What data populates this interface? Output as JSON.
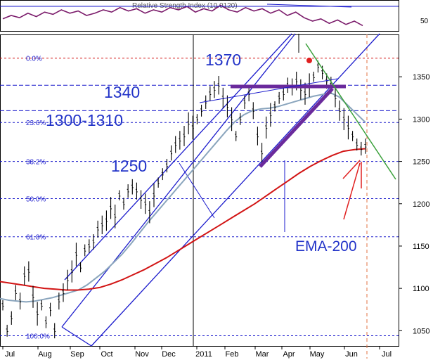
{
  "chart_data": [
    {
      "type": "line",
      "title": "Relative Strength Index (10.0120)",
      "y_ticks": [
        "50"
      ],
      "series": [
        {
          "values": [
            52,
            55,
            53,
            57,
            54,
            58,
            56,
            60,
            57,
            59,
            55,
            57,
            60,
            58,
            62,
            59,
            61,
            57,
            60,
            58,
            62,
            60,
            63,
            58,
            61,
            59,
            64,
            60,
            58,
            62,
            59,
            61,
            57,
            60,
            55,
            58,
            53,
            50,
            52,
            48,
            51,
            47,
            50,
            46
          ]
        }
      ]
    },
    {
      "type": "line",
      "y_ticks": [
        1050,
        1100,
        1150,
        1200,
        1250,
        1300,
        1350
      ],
      "ylim": [
        1032,
        1400
      ],
      "x_ticks": [
        "Jul",
        "Aug",
        "Sep",
        "Oct",
        "Nov",
        "Dec",
        "2011",
        "Feb",
        "Mar",
        "Apr",
        "May",
        "Jun",
        "Jul"
      ],
      "fib_levels": [
        "0.0%",
        "23.6%",
        "38.2%",
        "50.0%",
        "61.8%",
        "100.0%"
      ],
      "fib_prices": [
        1372,
        1296,
        1250,
        1206,
        1161,
        1044
      ],
      "level_labels": [
        "1370",
        "1340",
        "1300-1310",
        "1250"
      ],
      "ema_label": "EMA-200",
      "colors": {
        "price": "#000000",
        "ema": "#d21414",
        "sma": "#8aa5bd",
        "channel": "#1a1acc",
        "trend": "#3aa03a",
        "support": "#6a2a9c",
        "rsi": "#7a1a6a",
        "annotation": "#2233c8",
        "arrow": "#e02020"
      },
      "series": [
        {
          "kind": "price",
          "values": [
            1080,
            1050,
            1065,
            1095,
            1085,
            1115,
            1120,
            1090,
            1070,
            1080,
            1060,
            1075,
            1050,
            1085,
            1095,
            1110,
            1120,
            1140,
            1125,
            1145,
            1150,
            1155,
            1170,
            1175,
            1180,
            1195,
            1185,
            1210,
            1200,
            1215,
            1220,
            1215,
            1205,
            1200,
            1190,
            1210,
            1225,
            1235,
            1245,
            1260,
            1270,
            1275,
            1280,
            1295,
            1290,
            1300,
            1310,
            1320,
            1330,
            1335,
            1340,
            1325,
            1315,
            1300,
            1280,
            1300,
            1320,
            1330,
            1310,
            1280,
            1260,
            1290,
            1305,
            1315,
            1325,
            1330,
            1340,
            1338,
            1345,
            1335,
            1330,
            1340,
            1350,
            1362,
            1355,
            1345,
            1340,
            1325,
            1310,
            1300,
            1290,
            1280,
            1270,
            1265,
            1268
          ]
        },
        {
          "kind": "sma",
          "values": [
            1088,
            1086,
            1085,
            1084,
            1085,
            1087,
            1089,
            1092,
            1095,
            1098,
            1104,
            1112,
            1120,
            1130,
            1140,
            1152,
            1165,
            1178,
            1190,
            1202,
            1214,
            1226,
            1238,
            1250,
            1262,
            1274,
            1286,
            1297,
            1305,
            1310,
            1312,
            1313,
            1315,
            1318,
            1321,
            1324,
            1327,
            1329,
            1331,
            1326,
            1316,
            1306,
            1296
          ]
        },
        {
          "kind": "ema",
          "values": [
            1108,
            1106,
            1104,
            1102,
            1100,
            1099,
            1098,
            1098,
            1099,
            1101,
            1105,
            1110,
            1116,
            1122,
            1129,
            1136,
            1144,
            1152,
            1160,
            1168,
            1176,
            1184,
            1192,
            1200,
            1209,
            1218,
            1227,
            1236,
            1244,
            1251,
            1257,
            1262,
            1264,
            1265
          ]
        }
      ]
    }
  ]
}
